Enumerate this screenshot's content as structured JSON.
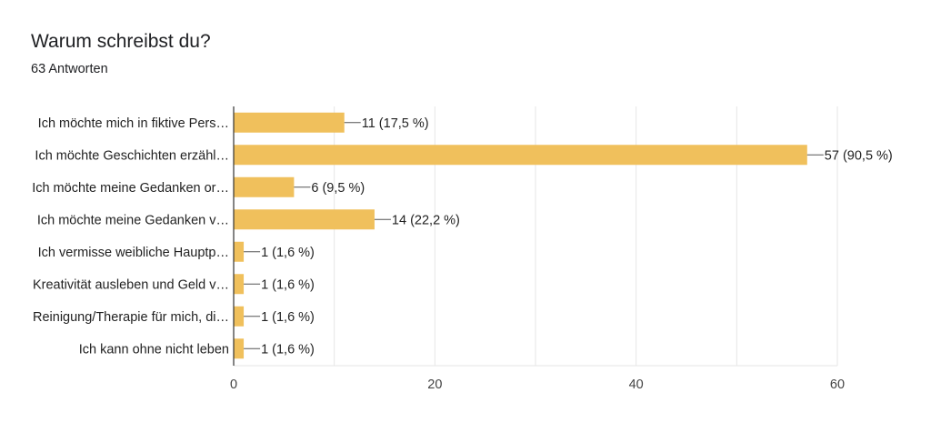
{
  "header": {
    "title": "Warum schreibst du?",
    "responses": "63 Antworten"
  },
  "colors": {
    "bar": "#F0C05C",
    "grid": "#E6E6E6",
    "axis": "#333333"
  },
  "chart_data": {
    "type": "bar",
    "orientation": "horizontal",
    "title": "Warum schreibst du?",
    "subtitle": "63 Antworten",
    "categories": [
      "Ich möchte mich in fiktive Pers…",
      "Ich möchte Geschichten erzähl…",
      "Ich möchte meine Gedanken or…",
      "Ich möchte meine Gedanken v…",
      "Ich vermisse weibliche Hauptp…",
      "Kreativität ausleben und Geld v…",
      "Reinigung/Therapie für mich, di…",
      "Ich kann ohne nicht leben"
    ],
    "values": [
      11,
      57,
      6,
      14,
      1,
      1,
      1,
      1
    ],
    "data_labels": [
      "11 (17,5 %)",
      "57 (90,5 %)",
      "6 (9,5 %)",
      "14 (22,2 %)",
      "1 (1,6 %)",
      "1 (1,6 %)",
      "1 (1,6 %)",
      "1 (1,6 %)"
    ],
    "xlim": [
      0,
      60
    ],
    "xticks": [
      0,
      20,
      40,
      60
    ],
    "grid": true
  }
}
